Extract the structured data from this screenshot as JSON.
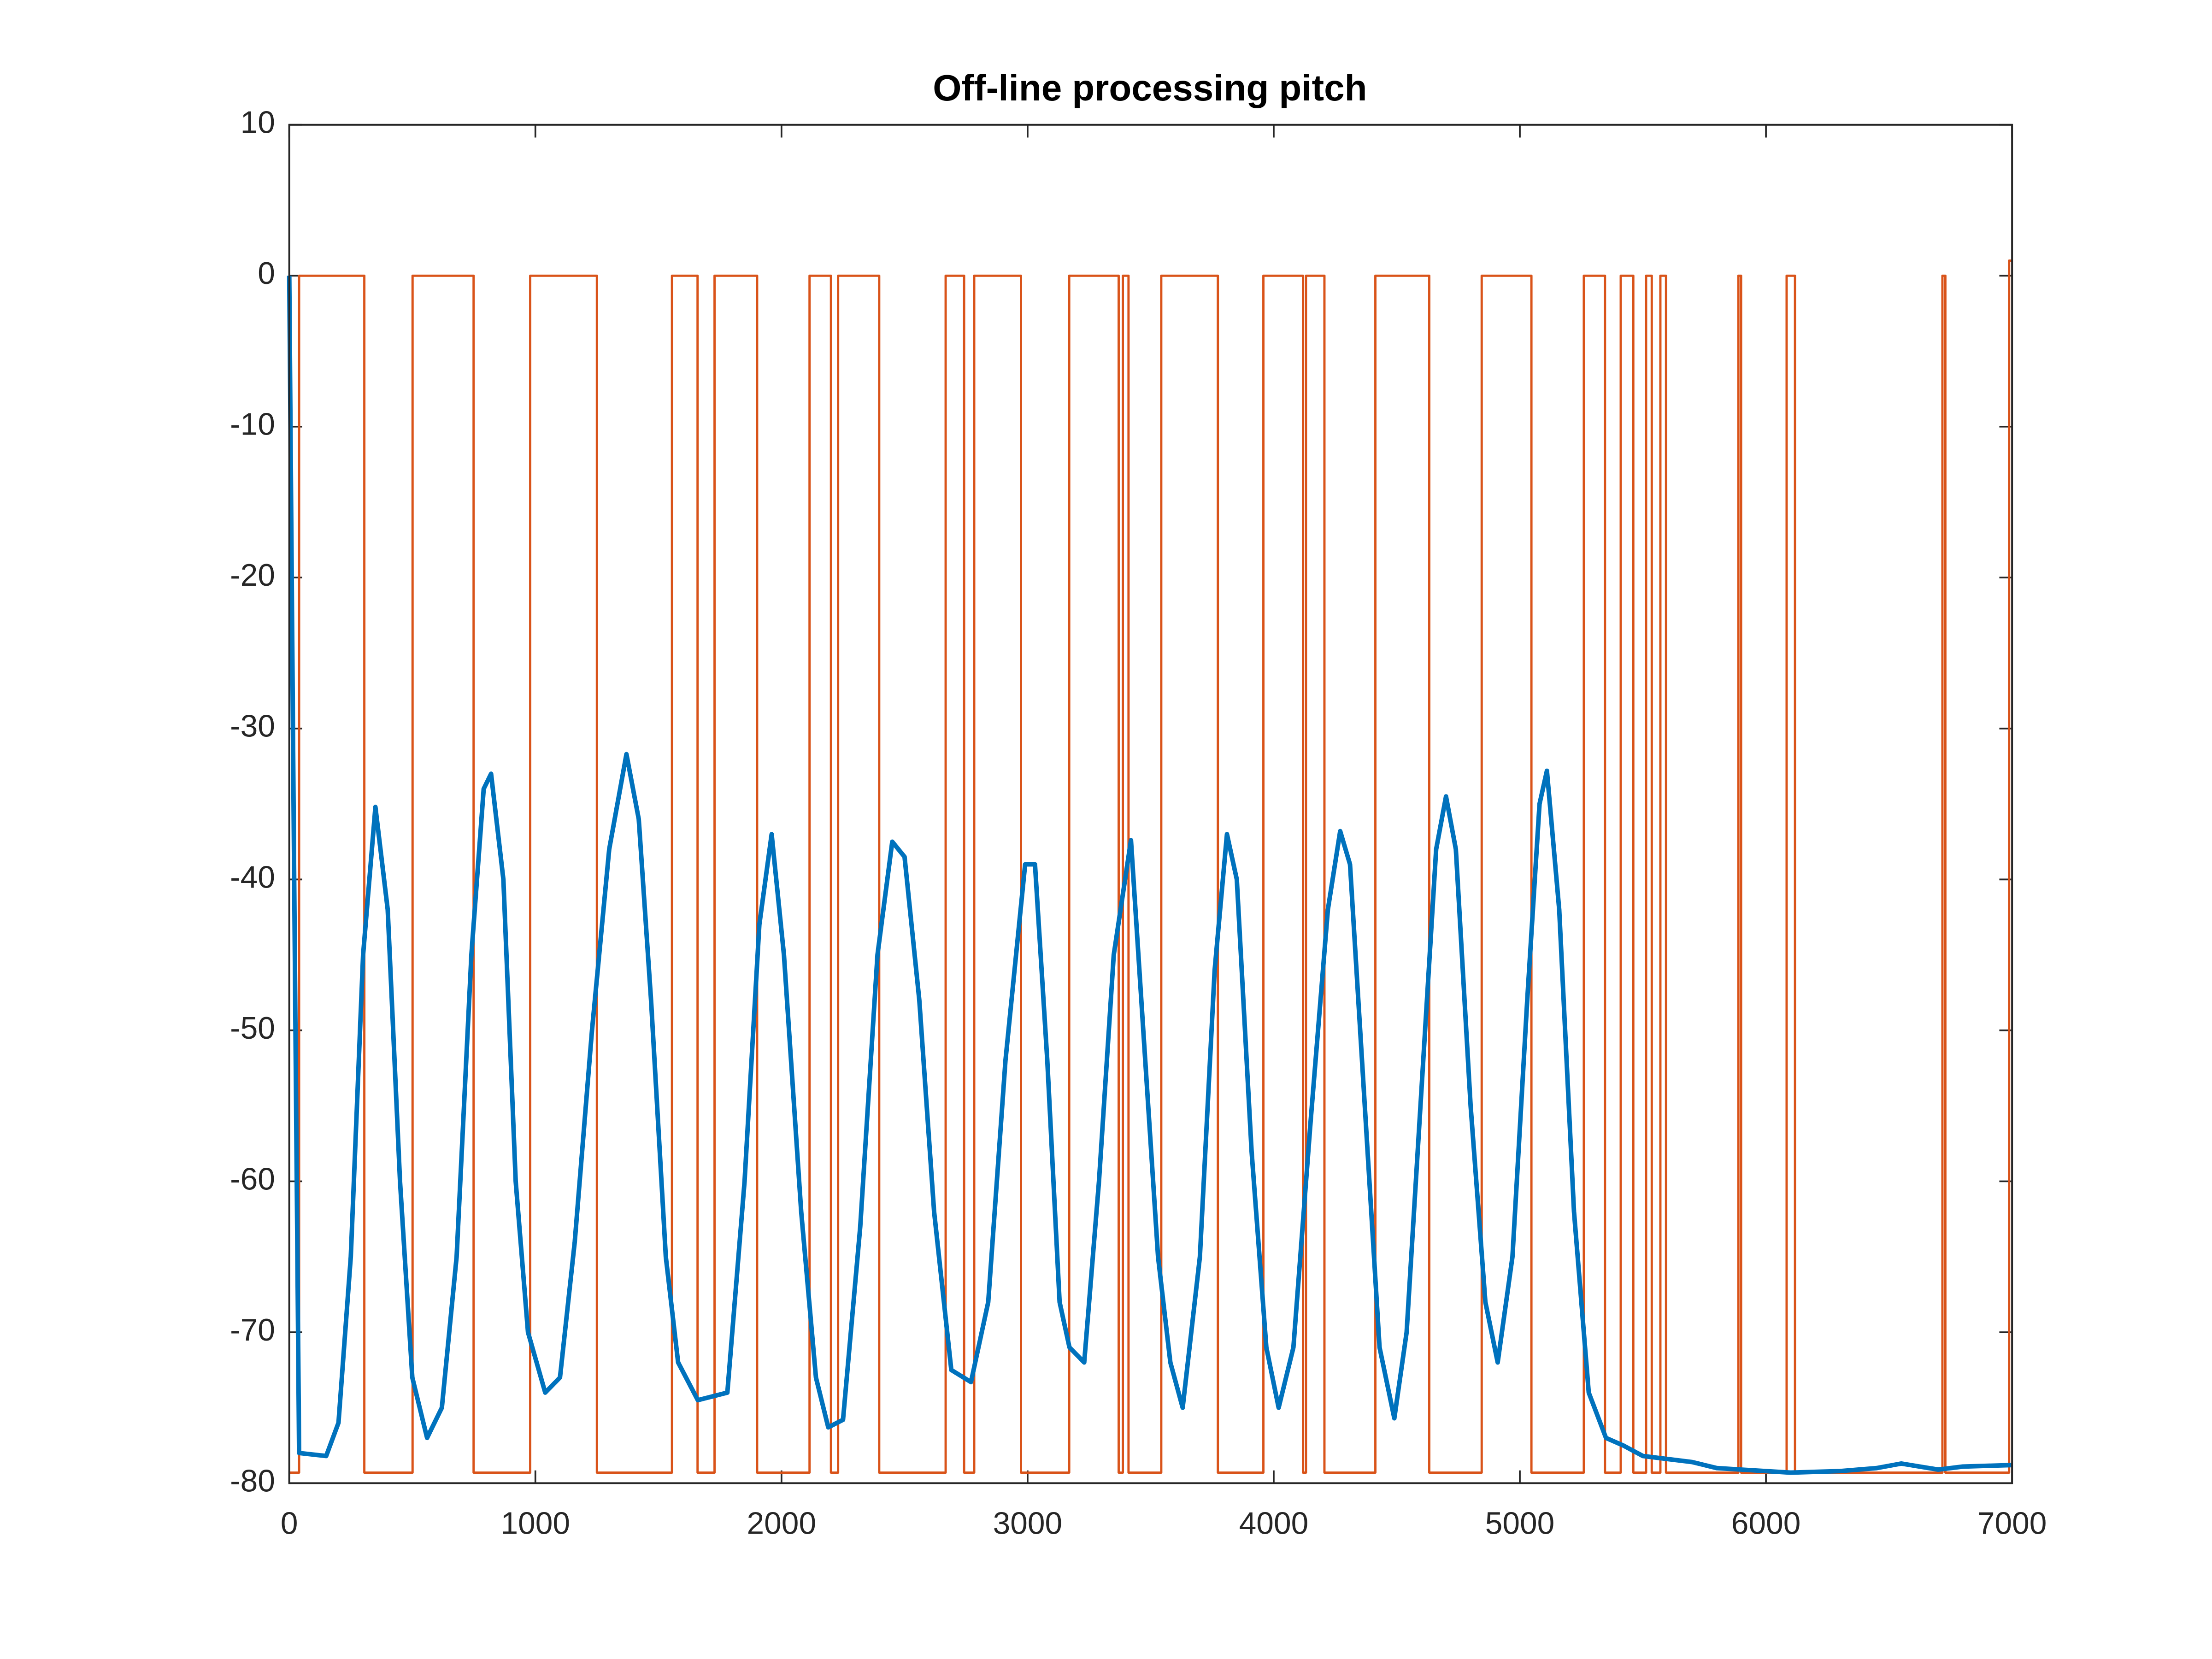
{
  "chart_data": {
    "type": "line",
    "title": "Off-line processing pitch",
    "xlim": [
      0,
      7000
    ],
    "xticks": [
      0,
      1000,
      2000,
      3000,
      4000,
      5000,
      6000,
      7000
    ],
    "ylim": [
      -80,
      10
    ],
    "yticks": [
      -80,
      -70,
      -60,
      -50,
      -40,
      -30,
      -20,
      -10,
      0,
      10
    ],
    "grid": false,
    "box": true,
    "series": [
      {
        "color": "#0072BD",
        "drawstyle": "line",
        "x": [
          0,
          20,
          40,
          150,
          200,
          250,
          300,
          350,
          400,
          450,
          500,
          560,
          620,
          680,
          740,
          790,
          820,
          870,
          920,
          970,
          1040,
          1100,
          1160,
          1230,
          1300,
          1370,
          1420,
          1470,
          1530,
          1580,
          1660,
          1780,
          1850,
          1910,
          1960,
          2010,
          2080,
          2140,
          2190,
          2250,
          2320,
          2390,
          2450,
          2500,
          2560,
          2620,
          2690,
          2770,
          2840,
          2910,
          2990,
          3030,
          3080,
          3130,
          3170,
          3230,
          3290,
          3350,
          3420,
          3470,
          3530,
          3580,
          3630,
          3700,
          3760,
          3810,
          3850,
          3910,
          3970,
          4020,
          4080,
          4150,
          4220,
          4270,
          4310,
          4370,
          4430,
          4490,
          4540,
          4600,
          4660,
          4700,
          4740,
          4800,
          4860,
          4910,
          4970,
          5030,
          5080,
          5110,
          5160,
          5220,
          5280,
          5350,
          5420,
          5500,
          5600,
          5700,
          5800,
          5900,
          6000,
          6100,
          6300,
          6450,
          6550,
          6700,
          6800,
          7000
        ],
        "values": [
          0,
          -40,
          -78,
          -78.2,
          -76,
          -65,
          -45,
          -35.2,
          -42,
          -60,
          -73,
          -77,
          -75,
          -65,
          -45,
          -34,
          -33,
          -40,
          -60,
          -70,
          -74,
          -73,
          -64,
          -50,
          -38,
          -31.7,
          -36,
          -48,
          -65,
          -72,
          -74.5,
          -74,
          -60,
          -43,
          -37,
          -45,
          -62,
          -73,
          -76.3,
          -75.8,
          -63,
          -45,
          -37.5,
          -38.5,
          -48,
          -62,
          -72.5,
          -73.3,
          -68,
          -52,
          -39,
          -39,
          -52,
          -68,
          -71,
          -72,
          -60,
          -45,
          -37.4,
          -50,
          -65,
          -72,
          -75,
          -65,
          -46,
          -37,
          -40,
          -58,
          -71,
          -75,
          -71,
          -56,
          -42,
          -36.8,
          -39,
          -55,
          -71,
          -75.7,
          -70,
          -54,
          -38,
          -34.5,
          -38,
          -55,
          -68,
          -72,
          -65,
          -48,
          -35,
          -32.8,
          -42,
          -62,
          -74,
          -77,
          -77.5,
          -78.2,
          -78.4,
          -78.6,
          -79,
          -79.1,
          -79.2,
          -79.3,
          -79.2,
          -79,
          -78.7,
          -79.1,
          -78.9,
          -78.8
        ]
      },
      {
        "color": "#D95319",
        "drawstyle": "steps-post",
        "x": [
          0,
          40,
          305,
          501,
          749,
          979,
          1250,
          1555,
          1659,
          1728,
          1901,
          2114,
          2201,
          2230,
          2397,
          2667,
          2742,
          2783,
          2973,
          3169,
          3370,
          3387,
          3410,
          3543,
          3773,
          3958,
          4119,
          4131,
          4206,
          4413,
          4632,
          4845,
          5047,
          5260,
          5346,
          5410,
          5461,
          5513,
          5536,
          5571,
          5594,
          5888,
          5899,
          6084,
          6118,
          6717,
          6729,
          6988,
          7000
        ],
        "values": [
          -79.3,
          0,
          -79.3,
          0,
          -79.3,
          0,
          -79.3,
          0,
          -79.3,
          0,
          -79.3,
          0,
          -79.3,
          0,
          -79.3,
          0,
          -79.3,
          0,
          -79.3,
          0,
          -79.3,
          0,
          -79.3,
          0,
          -79.3,
          0,
          -79.3,
          0,
          -79.3,
          0,
          -79.3,
          0,
          -79.3,
          0,
          -79.3,
          0,
          -79.3,
          0,
          -79.3,
          0,
          -79.3,
          0,
          -79.3,
          0,
          -79.3,
          0,
          -79.3,
          1,
          1
        ]
      }
    ]
  }
}
